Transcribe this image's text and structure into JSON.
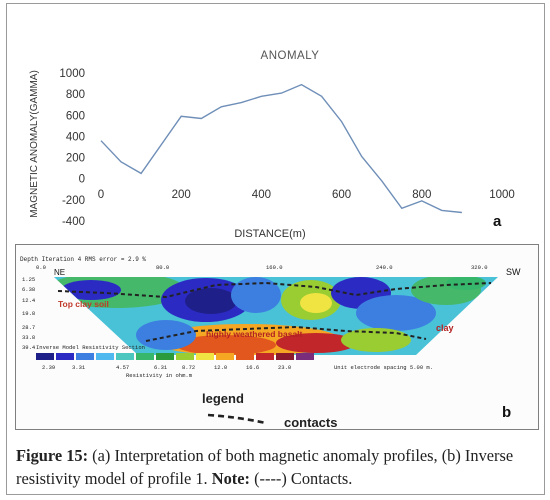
{
  "figure_a": {
    "chart_data": {
      "type": "line",
      "title": "ANOMALY",
      "xlabel": "DISTANCE(m)",
      "ylabel": "MAGNETIC ANOMALY(GAMMA)",
      "xlim": [
        0,
        1000
      ],
      "ylim": [
        -400,
        1000
      ],
      "x_ticks": [
        "0",
        "200",
        "400",
        "600",
        "800",
        "1000"
      ],
      "y_ticks": [
        "1000",
        "800",
        "600",
        "400",
        "200",
        "0",
        "-200",
        "-400"
      ],
      "grid": false,
      "legend": "none",
      "series": [
        {
          "x": [
            0,
            50,
            100,
            200,
            250,
            300,
            350,
            400,
            450,
            500,
            550,
            600,
            650,
            700,
            750,
            800,
            850,
            900
          ],
          "y": [
            360,
            160,
            50,
            590,
            570,
            680,
            720,
            780,
            810,
            890,
            780,
            540,
            210,
            -20,
            -280,
            -210,
            -300,
            -320
          ],
          "color": "#6f8fb8"
        }
      ],
      "panel_label": "a"
    }
  },
  "figure_b": {
    "header_left": "Depth   Iteration 4 RMS error = 2.9 %",
    "top_ticks": [
      "0.0",
      "80.0",
      "160.0",
      "240.0",
      "320.0"
    ],
    "ne_label": "NE",
    "sw_label": "SW",
    "depth_ticks": [
      "1.25",
      "6.38",
      "12.4",
      "19.8",
      "28.7",
      "33.8",
      "39.4"
    ],
    "labels": {
      "top_clay": "Top clay soil",
      "weathered": "highly weathered basalt",
      "clay": "clay"
    },
    "section_title": "Inverse Model Resistivity Section",
    "scale_values": [
      "2.39",
      "3.31",
      "4.57",
      "6.31",
      "8.72",
      "12.0",
      "16.6",
      "23.0"
    ],
    "scale_colors": [
      "#1f1f8a",
      "#2b2bc4",
      "#3d7fe0",
      "#4fb8ef",
      "#4bc7c0",
      "#37b76b",
      "#2a9a3a",
      "#9acd32",
      "#f0e442",
      "#f5a623",
      "#e2571e",
      "#c0262a",
      "#8b1a2c",
      "#7a2d7a"
    ],
    "resistivity_label": "Resistivity in ohm.m",
    "electrode_label": "Unit electrode spacing 5.00 m.",
    "legend_title": "legend",
    "contacts_label": "contacts",
    "panel_label": "b"
  },
  "caption": {
    "figure_label": "Figure 15:",
    "text1": " (a) Interpretation of both magnetic anomaly profiles, (b) Inverse resistivity model of profile 1. ",
    "note_label": "Note:",
    "text2": " (----) Contacts."
  }
}
